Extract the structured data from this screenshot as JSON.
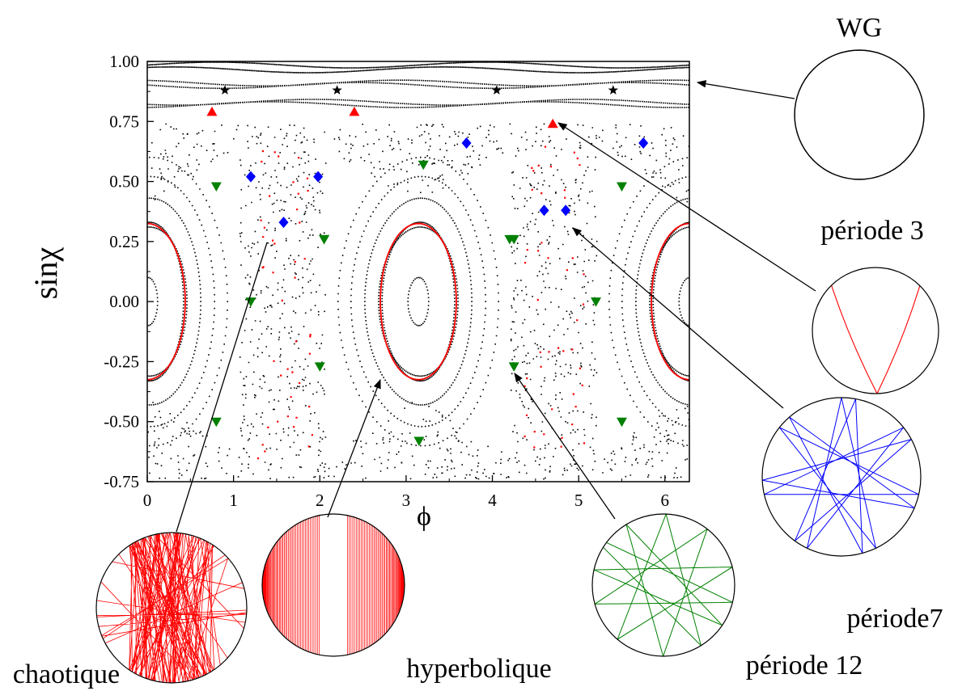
{
  "chart_data": {
    "type": "scatter",
    "title": "",
    "xlabel": "ϕ",
    "ylabel": "sinχ",
    "xlim": [
      0,
      6.2832
    ],
    "ylim": [
      -0.75,
      1.0
    ],
    "x_ticks": [
      0,
      1,
      2,
      3,
      4,
      5,
      6
    ],
    "x_tick_labels": [
      "0",
      "1",
      "2",
      "3",
      "4",
      "5",
      "6"
    ],
    "y_ticks": [
      1.0,
      0.75,
      0.5,
      0.25,
      0.0,
      -0.25,
      -0.5,
      -0.75
    ],
    "y_tick_labels": [
      "1.00",
      "0.75",
      "0.50",
      "0.25",
      "0.00",
      "-0.25",
      "-0.50",
      "-0.75"
    ],
    "grid": false,
    "series": [
      {
        "marker": "star",
        "color": "#000000",
        "x": [
          0.9,
          2.2,
          4.05,
          5.4
        ],
        "y": [
          0.88,
          0.88,
          0.88,
          0.88
        ]
      },
      {
        "marker": "triangle-up",
        "color": "#ff0000",
        "x": [
          0.75,
          2.4,
          4.7
        ],
        "y": [
          0.79,
          0.79,
          0.74
        ]
      },
      {
        "marker": "diamond",
        "color": "#0000ff",
        "x": [
          1.2,
          1.98,
          1.58,
          3.7,
          4.6,
          4.85,
          5.75
        ],
        "y": [
          0.52,
          0.52,
          0.33,
          0.66,
          0.38,
          0.38,
          0.66
        ]
      },
      {
        "marker": "triangle-down",
        "color": "#008000",
        "x": [
          0.8,
          1.2,
          2.05,
          3.2,
          4.2,
          5.2,
          5.5,
          2.0,
          0.8,
          4.25,
          3.15,
          5.5,
          2.05,
          4.25
        ],
        "y": [
          0.48,
          0.0,
          0.26,
          0.57,
          0.26,
          0.0,
          0.48,
          -0.27,
          -0.5,
          -0.27,
          -0.58,
          -0.5,
          0.26,
          0.26
        ]
      }
    ]
  },
  "insets": {
    "wg": "WG",
    "periode3": "période 3",
    "periode7": "période7",
    "periode12": "période 12",
    "chaotique": "chaotique",
    "hyperbolique": "hyperbolique"
  },
  "colors": {
    "axis": "#000000",
    "points": "#000000",
    "red_orbit": "#ff0000",
    "blue_orbit": "#0000ff",
    "green_orbit": "#008000"
  }
}
